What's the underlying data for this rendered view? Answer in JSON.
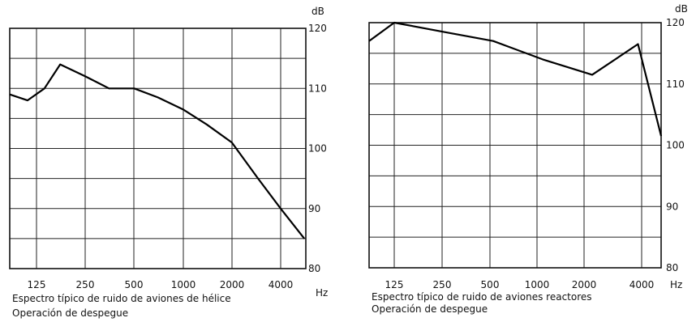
{
  "chart_data": [
    {
      "type": "line",
      "id": "left",
      "x_ticks": [
        "125",
        "250",
        "500",
        "1000",
        "2000",
        "4000"
      ],
      "x_unit": "Hz",
      "y_ticks": [
        "120",
        "110",
        "100",
        "90",
        "80"
      ],
      "y_unit": "dB",
      "ylim": [
        80,
        120
      ],
      "grid": true,
      "x_scale": "log",
      "series": [
        {
          "x": [
            80,
            110,
            140,
            175,
            250,
            350,
            500,
            700,
            1000,
            1400,
            2000,
            2900,
            4000,
            5600
          ],
          "y": [
            109,
            108,
            110,
            114,
            112,
            110,
            110,
            108.5,
            106.5,
            104,
            101,
            95,
            90,
            85
          ]
        }
      ],
      "caption": [
        "Espectro típico de ruido de aviones de hélice",
        "Operación de despegue"
      ]
    },
    {
      "type": "line",
      "id": "right",
      "x_ticks": [
        "125",
        "250",
        "500",
        "1000",
        "2000",
        "4000"
      ],
      "x_unit": "Hz",
      "y_ticks": [
        "120",
        "110",
        "100",
        "90",
        "80"
      ],
      "y_unit": "dB",
      "ylim": [
        80,
        120
      ],
      "grid": true,
      "x_scale": "log",
      "series": [
        {
          "x": [
            80,
            125,
            250,
            500,
            1000,
            2000,
            3800,
            5400
          ],
          "y": [
            117,
            120,
            118.5,
            117,
            114,
            111.5,
            116.5,
            101.5
          ]
        }
      ],
      "caption": [
        "Espectro típico de ruido de aviones reactores",
        "Operación de despegue"
      ]
    }
  ]
}
